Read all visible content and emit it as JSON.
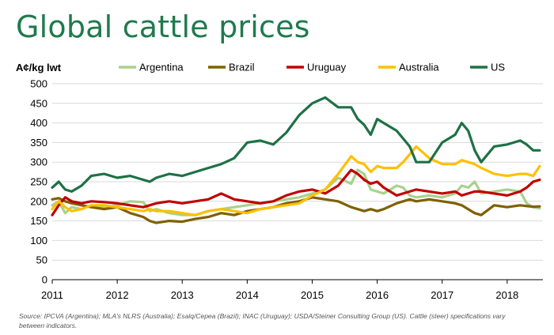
{
  "title": "Global cattle prices",
  "unit_label": "A¢/kg lwt",
  "source": "Source: IPCVA (Argentina); MLA's NLRS (Australia); Esalq/Cepea (Brazil); INAC (Uruguay); USDA/Steiner Consulting Group (US). Cattle (steer) specifications vary between indicators.",
  "chart_data": {
    "type": "line",
    "title": "Global cattle prices",
    "ylabel": "A¢/kg lwt",
    "xlabel": "",
    "ylim": [
      0,
      500
    ],
    "xlim": [
      2011,
      2018.55
    ],
    "yticks": [
      0,
      50,
      100,
      150,
      200,
      250,
      300,
      350,
      400,
      450,
      500
    ],
    "xticks": [
      "2011",
      "2012",
      "2013",
      "2014",
      "2015",
      "2016",
      "2017",
      "2018"
    ],
    "grid": "horizontal",
    "legend": "top",
    "series": [
      {
        "name": "Argentina",
        "color": "#a9d18e",
        "x": [
          2011.0,
          2011.1,
          2011.2,
          2011.3,
          2011.45,
          2011.6,
          2011.8,
          2012.0,
          2012.2,
          2012.4,
          2012.5,
          2012.6,
          2012.8,
          2013.0,
          2013.2,
          2013.4,
          2013.6,
          2013.8,
          2014.0,
          2014.2,
          2014.4,
          2014.6,
          2014.8,
          2015.0,
          2015.2,
          2015.4,
          2015.6,
          2015.7,
          2015.8,
          2015.9,
          2016.0,
          2016.1,
          2016.3,
          2016.4,
          2016.5,
          2016.6,
          2016.8,
          2017.0,
          2017.2,
          2017.3,
          2017.4,
          2017.5,
          2017.6,
          2017.8,
          2018.0,
          2018.2,
          2018.3,
          2018.4,
          2018.5
        ],
        "values": [
          190,
          200,
          170,
          185,
          180,
          190,
          185,
          190,
          200,
          198,
          175,
          180,
          170,
          165,
          165,
          175,
          180,
          185,
          190,
          195,
          200,
          205,
          210,
          220,
          230,
          260,
          245,
          280,
          270,
          230,
          225,
          220,
          240,
          235,
          215,
          210,
          215,
          210,
          220,
          240,
          235,
          250,
          220,
          225,
          230,
          225,
          195,
          185,
          182
        ]
      },
      {
        "name": "Brazil",
        "color": "#7f6000",
        "x": [
          2011.0,
          2011.1,
          2011.2,
          2011.3,
          2011.45,
          2011.6,
          2011.8,
          2012.0,
          2012.2,
          2012.4,
          2012.5,
          2012.6,
          2012.8,
          2013.0,
          2013.2,
          2013.4,
          2013.6,
          2013.8,
          2014.0,
          2014.2,
          2014.4,
          2014.6,
          2014.8,
          2015.0,
          2015.2,
          2015.4,
          2015.6,
          2015.7,
          2015.8,
          2015.9,
          2016.0,
          2016.1,
          2016.3,
          2016.4,
          2016.5,
          2016.6,
          2016.8,
          2017.0,
          2017.2,
          2017.3,
          2017.4,
          2017.5,
          2017.6,
          2017.8,
          2018.0,
          2018.2,
          2018.3,
          2018.4,
          2018.5
        ],
        "values": [
          205,
          208,
          200,
          195,
          190,
          185,
          180,
          185,
          170,
          160,
          150,
          145,
          150,
          148,
          155,
          160,
          170,
          165,
          175,
          180,
          185,
          195,
          200,
          210,
          205,
          200,
          185,
          180,
          175,
          180,
          175,
          180,
          195,
          200,
          205,
          200,
          205,
          200,
          195,
          190,
          180,
          170,
          165,
          190,
          185,
          190,
          188,
          186,
          187
        ]
      },
      {
        "name": "Uruguay",
        "color": "#c00000",
        "x": [
          2011.0,
          2011.1,
          2011.2,
          2011.3,
          2011.45,
          2011.6,
          2011.8,
          2012.0,
          2012.2,
          2012.4,
          2012.5,
          2012.6,
          2012.8,
          2013.0,
          2013.2,
          2013.4,
          2013.6,
          2013.8,
          2014.0,
          2014.2,
          2014.4,
          2014.6,
          2014.8,
          2015.0,
          2015.2,
          2015.4,
          2015.6,
          2015.7,
          2015.8,
          2015.9,
          2016.0,
          2016.1,
          2016.3,
          2016.4,
          2016.5,
          2016.6,
          2016.8,
          2017.0,
          2017.2,
          2017.3,
          2017.4,
          2017.5,
          2017.6,
          2017.8,
          2018.0,
          2018.2,
          2018.3,
          2018.4,
          2018.5
        ],
        "values": [
          165,
          190,
          210,
          200,
          195,
          200,
          198,
          195,
          190,
          185,
          190,
          195,
          200,
          195,
          200,
          205,
          220,
          205,
          200,
          195,
          200,
          215,
          225,
          230,
          220,
          240,
          280,
          270,
          255,
          245,
          250,
          235,
          215,
          220,
          225,
          230,
          225,
          220,
          225,
          215,
          220,
          225,
          225,
          220,
          215,
          225,
          235,
          250,
          255
        ]
      },
      {
        "name": "Australia",
        "color": "#ffc000",
        "x": [
          2011.0,
          2011.1,
          2011.2,
          2011.3,
          2011.45,
          2011.6,
          2011.8,
          2012.0,
          2012.2,
          2012.4,
          2012.5,
          2012.6,
          2012.8,
          2013.0,
          2013.2,
          2013.4,
          2013.6,
          2013.8,
          2014.0,
          2014.2,
          2014.4,
          2014.6,
          2014.8,
          2015.0,
          2015.2,
          2015.4,
          2015.6,
          2015.7,
          2015.8,
          2015.9,
          2016.0,
          2016.1,
          2016.3,
          2016.4,
          2016.5,
          2016.6,
          2016.8,
          2017.0,
          2017.2,
          2017.3,
          2017.4,
          2017.5,
          2017.6,
          2017.8,
          2018.0,
          2018.2,
          2018.3,
          2018.4,
          2018.5
        ],
        "values": [
          180,
          200,
          185,
          175,
          180,
          190,
          190,
          185,
          180,
          175,
          180,
          175,
          175,
          170,
          165,
          175,
          180,
          175,
          170,
          180,
          185,
          190,
          195,
          215,
          230,
          270,
          315,
          300,
          295,
          275,
          290,
          285,
          285,
          300,
          320,
          340,
          310,
          295,
          295,
          305,
          300,
          295,
          285,
          270,
          265,
          270,
          270,
          265,
          290
        ]
      },
      {
        "name": "US",
        "color": "#1e7145",
        "x": [
          2011.0,
          2011.1,
          2011.2,
          2011.3,
          2011.45,
          2011.6,
          2011.8,
          2012.0,
          2012.2,
          2012.4,
          2012.5,
          2012.6,
          2012.8,
          2013.0,
          2013.2,
          2013.4,
          2013.6,
          2013.8,
          2014.0,
          2014.2,
          2014.4,
          2014.6,
          2014.8,
          2015.0,
          2015.2,
          2015.4,
          2015.6,
          2015.7,
          2015.8,
          2015.9,
          2016.0,
          2016.1,
          2016.3,
          2016.4,
          2016.5,
          2016.6,
          2016.8,
          2017.0,
          2017.2,
          2017.3,
          2017.4,
          2017.5,
          2017.6,
          2017.8,
          2018.0,
          2018.2,
          2018.3,
          2018.4,
          2018.5
        ],
        "values": [
          235,
          250,
          230,
          225,
          240,
          265,
          270,
          260,
          265,
          255,
          250,
          260,
          270,
          265,
          275,
          285,
          295,
          310,
          350,
          355,
          345,
          375,
          420,
          450,
          465,
          440,
          440,
          410,
          395,
          370,
          410,
          400,
          380,
          360,
          340,
          300,
          300,
          350,
          370,
          400,
          380,
          330,
          300,
          340,
          345,
          355,
          345,
          330,
          330
        ]
      }
    ]
  }
}
